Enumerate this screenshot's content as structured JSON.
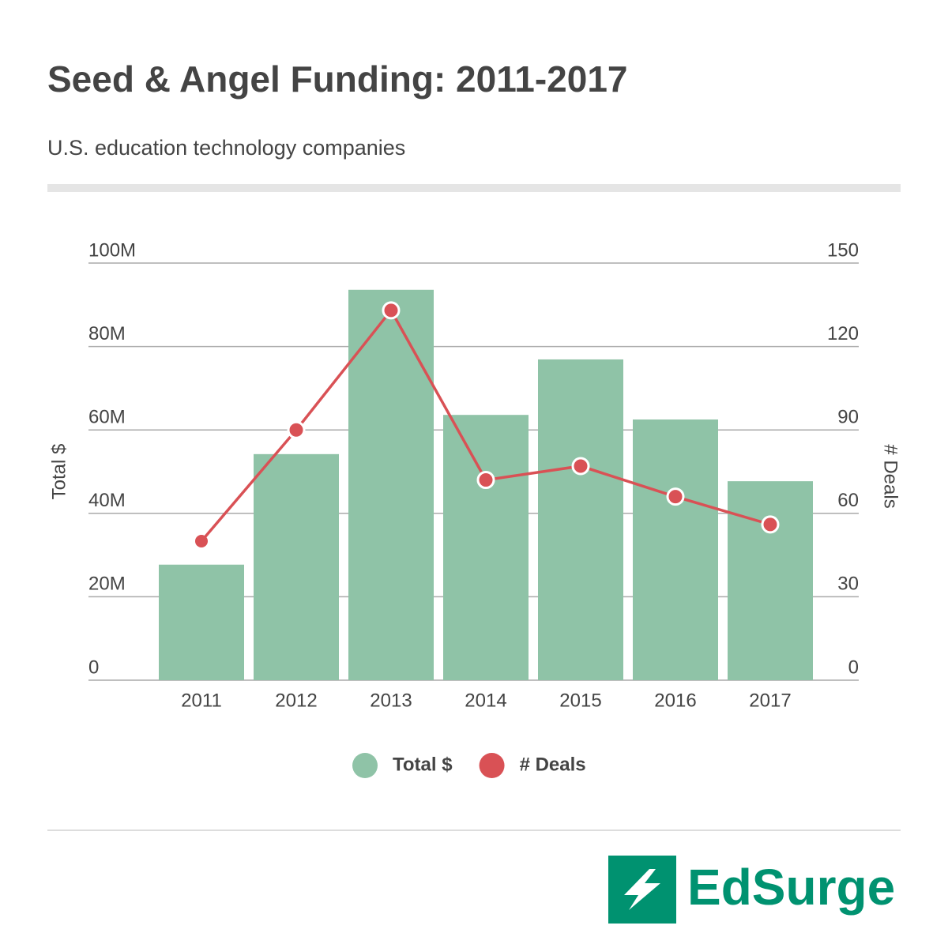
{
  "chart_data": {
    "type": "bar-line",
    "title": "Seed & Angel Funding: 2011-2017",
    "subtitle": "U.S. education technology companies",
    "y_label": "Total $",
    "y2_label": "# Deals",
    "categories": [
      "2011",
      "2012",
      "2013",
      "2014",
      "2015",
      "2016",
      "2017"
    ],
    "series": [
      {
        "name": "Total $",
        "type": "bar",
        "color": "#8fc3a7",
        "values": [
          27700000,
          54200000,
          93600000,
          63600000,
          76900000,
          62500000,
          47700000
        ]
      },
      {
        "name": "# Deals",
        "type": "line",
        "axis": "y2",
        "color": "#d95155",
        "values": [
          50,
          90,
          133,
          72,
          77,
          66,
          56
        ]
      }
    ],
    "ylim": [
      0,
      100000000
    ],
    "yticks": [
      0,
      {
        "value": 20000000,
        "label": "20M"
      },
      {
        "value": 40000000,
        "label": "40M"
      },
      {
        "value": 60000000,
        "label": "60M"
      },
      {
        "value": 80000000,
        "label": "80M"
      },
      {
        "value": 100000000,
        "label": "100M"
      }
    ],
    "y2lim": [
      0,
      150
    ],
    "y2ticks": [
      0,
      30,
      60,
      90,
      120,
      150
    ],
    "grid": true,
    "legend": "bottom"
  },
  "logo": {
    "text": "EdSurge"
  }
}
